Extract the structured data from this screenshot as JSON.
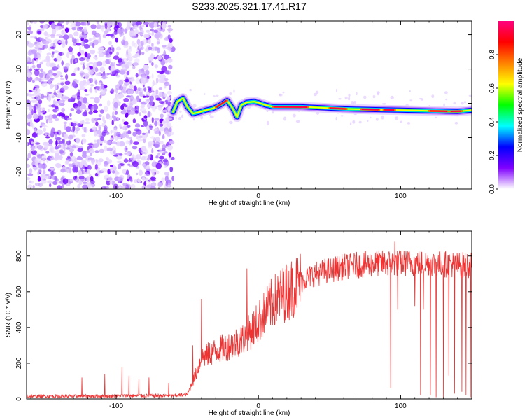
{
  "title": "S233.2025.321.17.41.R17",
  "chart_data": [
    {
      "type": "heatmap",
      "xlabel": "Height of straight line (km)",
      "ylabel": "Frequency (Hz)",
      "xlim": [
        -163,
        150
      ],
      "ylim": [
        -25,
        24
      ],
      "x_ticks": [
        -100,
        0,
        100
      ],
      "x_tick_labels": [
        "-100",
        "0",
        "100"
      ],
      "y_ticks": [
        -20,
        -10,
        0,
        10,
        20
      ],
      "y_tick_labels": [
        "-20",
        "-10",
        "0",
        "10",
        "20"
      ],
      "noise_region_x": [
        -163,
        -60
      ],
      "ridge": {
        "description": "narrow high-amplitude trace near 0 Hz",
        "x": [
          -60,
          -57,
          -53,
          -50,
          -46,
          -42,
          -37,
          -32,
          -27,
          -22,
          -18,
          -15,
          -12,
          -8,
          -3,
          0,
          5,
          10,
          20,
          30,
          40,
          50,
          60,
          70,
          80,
          90,
          100,
          110,
          120,
          130,
          140,
          150
        ],
        "freq": [
          -2.5,
          0.5,
          1.5,
          -1.0,
          -3.0,
          -2.6,
          -2.0,
          -1.5,
          -0.5,
          0.8,
          -1.5,
          -4.0,
          -0.5,
          0.3,
          0.5,
          0.2,
          -0.5,
          -1.0,
          -1.0,
          -1.0,
          -1.2,
          -1.4,
          -1.6,
          -1.7,
          -1.8,
          -1.9,
          -2.0,
          -2.1,
          -2.2,
          -2.3,
          -2.4,
          -2.0
        ]
      },
      "colorbar": {
        "label": "Normalized spectral amplitude",
        "range": [
          0,
          1
        ],
        "ticks": [
          0.0,
          0.2,
          0.4,
          0.6,
          0.8
        ],
        "tick_labels": [
          "0.0",
          "0.2",
          "0.4",
          "0.6",
          "0.8"
        ],
        "colors": [
          "#ffffff",
          "#8000ff",
          "#0000ff",
          "#00ffff",
          "#00ff00",
          "#ffff00",
          "#ff8000",
          "#ff0000",
          "#ff0080"
        ]
      }
    },
    {
      "type": "line",
      "xlabel": "Height of straight line (km)",
      "ylabel": "SNR (10 * v/v)",
      "xlim": [
        -163,
        150
      ],
      "ylim": [
        0,
        940
      ],
      "x_ticks": [
        -100,
        0,
        100
      ],
      "x_tick_labels": [
        "-100",
        "0",
        "100"
      ],
      "y_ticks": [
        0,
        200,
        400,
        600,
        800
      ],
      "y_tick_labels": [
        "0",
        "200",
        "400",
        "600",
        "800"
      ],
      "line_color": "#ee3333",
      "trend": {
        "x": [
          -163,
          -120,
          -90,
          -60,
          -50,
          -45,
          -40,
          -30,
          -20,
          -10,
          0,
          10,
          20,
          30,
          40,
          50,
          60,
          70,
          80,
          90,
          100,
          110,
          120,
          130,
          140,
          150
        ],
        "y": [
          15,
          15,
          18,
          18,
          25,
          120,
          230,
          270,
          300,
          340,
          430,
          540,
          600,
          660,
          700,
          720,
          740,
          750,
          755,
          760,
          760,
          760,
          760,
          755,
          750,
          750
        ]
      },
      "spikes": [
        {
          "x": -124,
          "y": 120
        },
        {
          "x": -108,
          "y": 140
        },
        {
          "x": -96,
          "y": 180
        },
        {
          "x": -91,
          "y": 130
        },
        {
          "x": -84,
          "y": 110
        },
        {
          "x": -77,
          "y": 120
        },
        {
          "x": -63,
          "y": 90
        },
        {
          "x": -46,
          "y": 300
        },
        {
          "x": -40,
          "y": 560
        },
        {
          "x": -8,
          "y": 730
        },
        {
          "x": 93,
          "y": 940
        },
        {
          "x": 96,
          "y": 880
        }
      ],
      "dropouts": [
        {
          "x": 93,
          "y": 60
        },
        {
          "x": 98,
          "y": 500
        },
        {
          "x": 110,
          "y": 520
        },
        {
          "x": 114,
          "y": 20
        },
        {
          "x": 116,
          "y": 500
        },
        {
          "x": 121,
          "y": 20
        },
        {
          "x": 125,
          "y": 10
        },
        {
          "x": 130,
          "y": 10
        },
        {
          "x": 134,
          "y": 130
        },
        {
          "x": 138,
          "y": 30
        },
        {
          "x": 143,
          "y": 40
        },
        {
          "x": 146,
          "y": 20
        },
        {
          "x": 149,
          "y": 10
        }
      ]
    }
  ]
}
